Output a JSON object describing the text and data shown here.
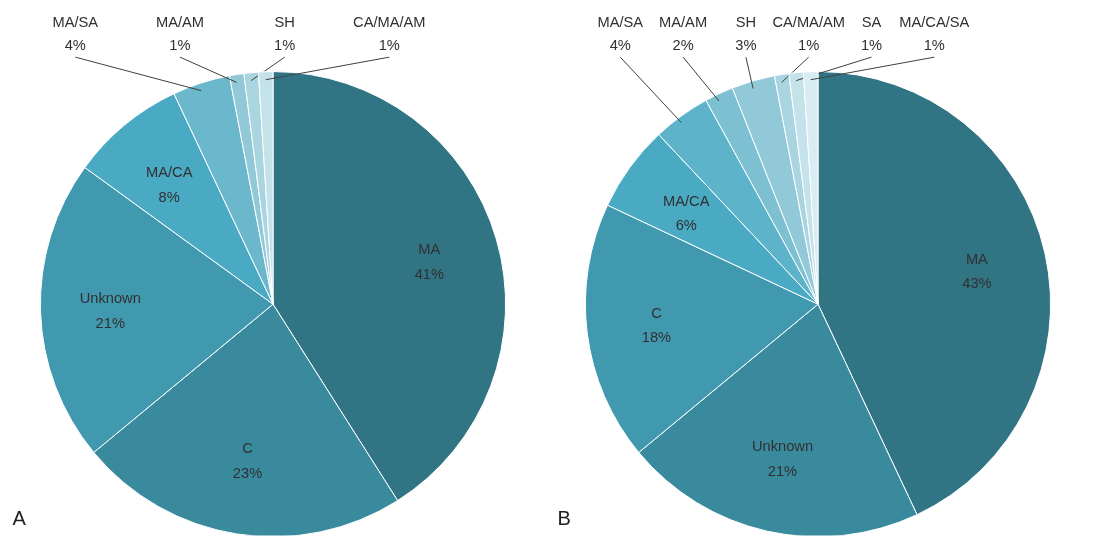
{
  "chart_data": [
    {
      "type": "pie",
      "annotations": [
        "A"
      ],
      "categories": [
        "MA",
        "C",
        "Unknown",
        "MA/CA",
        "MA/SA",
        "MA/AM",
        "SH",
        "CA/MA/AM"
      ],
      "values": [
        41,
        23,
        21,
        8,
        4,
        1,
        1,
        1
      ],
      "value_labels": [
        "41%",
        "23%",
        "21%",
        "8%",
        "4%",
        "1%",
        "1%",
        "1%"
      ],
      "colors": [
        "#317585",
        "#3a8a9e",
        "#4199b0",
        "#4aaac4",
        "#6bb8cc",
        "#92c9d8",
        "#a9d5e0",
        "#c4e2ea"
      ]
    },
    {
      "type": "pie",
      "annotations": [
        "B"
      ],
      "categories": [
        "MA",
        "Unknown",
        "C",
        "MA/CA",
        "MA/SA",
        "MA/AM",
        "SH",
        "CA/MA/AM",
        "SA",
        "MA/CA/SA"
      ],
      "values": [
        43,
        21,
        18,
        6,
        4,
        2,
        3,
        1,
        1,
        1
      ],
      "value_labels": [
        "43%",
        "21%",
        "18%",
        "6%",
        "4%",
        "2%",
        "3%",
        "1%",
        "1%",
        "1%"
      ],
      "colors": [
        "#317585",
        "#3a8a9e",
        "#4199b0",
        "#4aaac4",
        "#5cb3ca",
        "#7cc0d2",
        "#92c9d8",
        "#a9d5e0",
        "#c4e2ea",
        "#d8ecf1"
      ]
    }
  ]
}
